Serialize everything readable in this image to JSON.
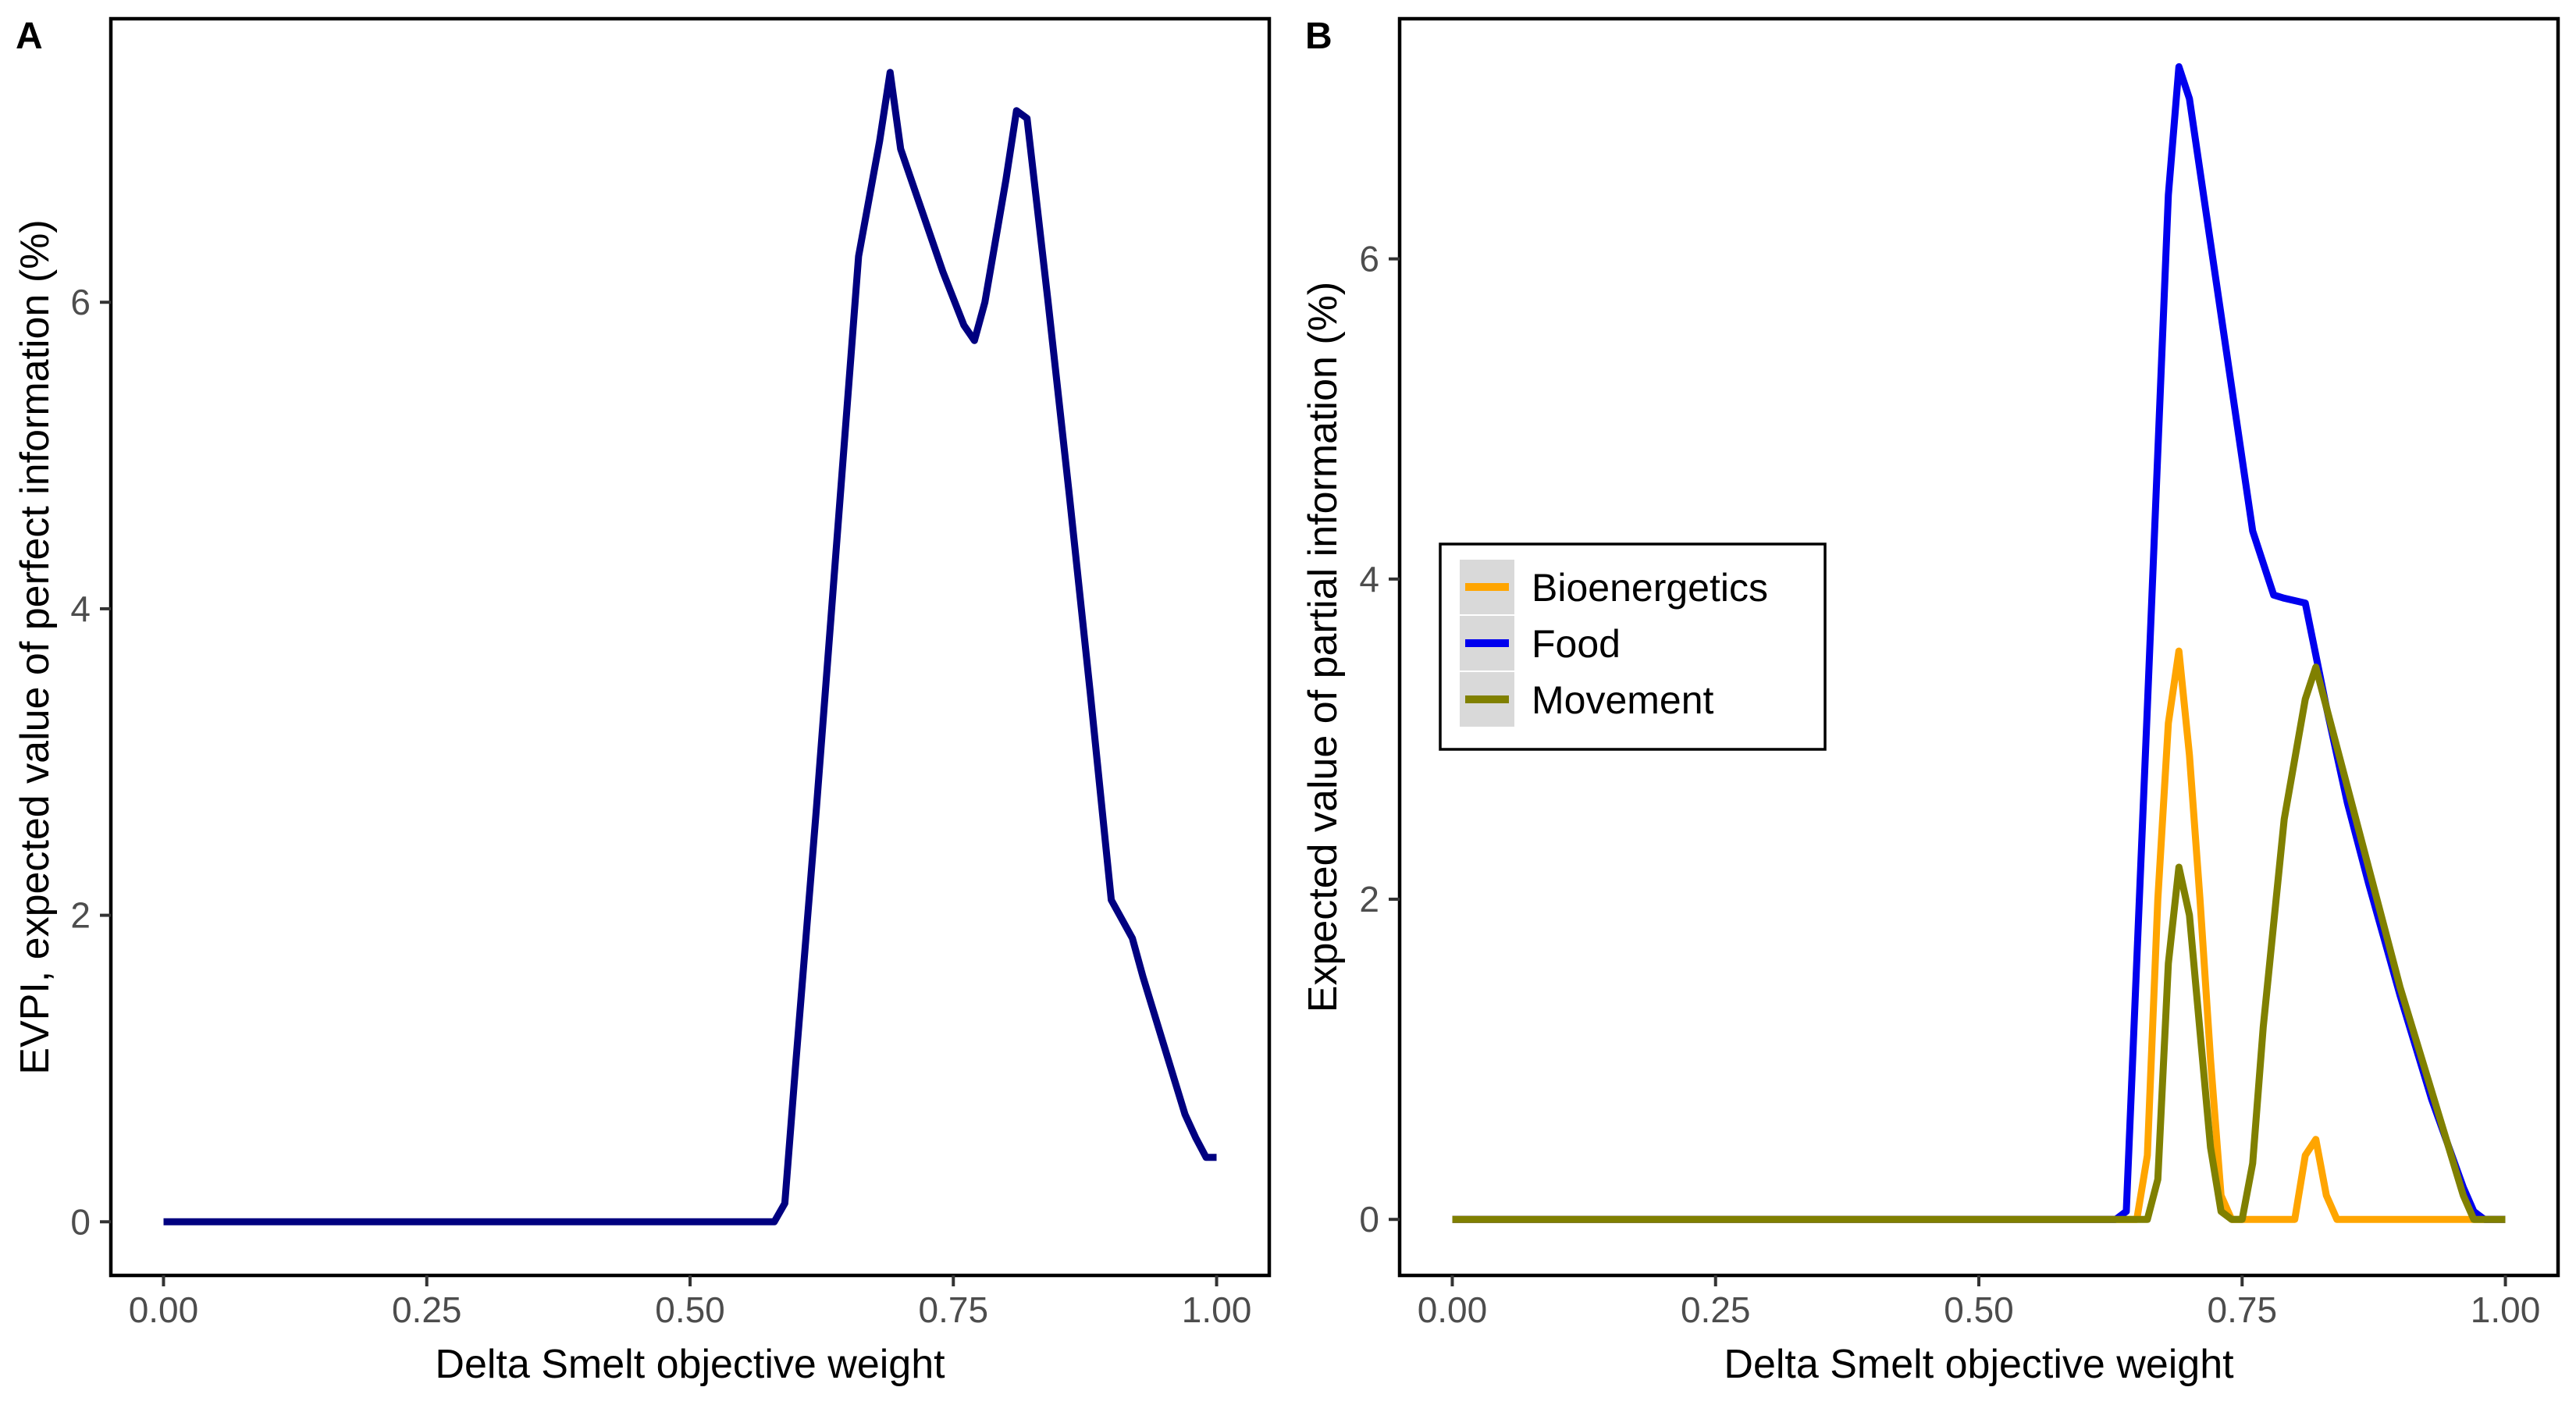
{
  "chart_data": [
    {
      "panel": "A",
      "type": "line",
      "title": "",
      "xlabel": "Delta Smelt objective weight",
      "ylabel": "EVPI, expected value of perfect information (%)",
      "xlim": [
        -0.05,
        1.05
      ],
      "ylim": [
        -0.35,
        7.85
      ],
      "xticks": [
        "0.00",
        "0.25",
        "0.50",
        "0.75",
        "1.00"
      ],
      "yticks": [
        "0",
        "2",
        "4",
        "6"
      ],
      "grid": false,
      "series": [
        {
          "color": "#000080",
          "x": [
            0.0,
            0.1,
            0.2,
            0.3,
            0.4,
            0.5,
            0.58,
            0.59,
            0.6,
            0.62,
            0.64,
            0.66,
            0.68,
            0.69,
            0.7,
            0.72,
            0.74,
            0.76,
            0.77,
            0.78,
            0.8,
            0.81,
            0.82,
            0.84,
            0.86,
            0.88,
            0.9,
            0.92,
            0.93,
            0.95,
            0.97,
            0.98,
            0.99,
            1.0
          ],
          "y": [
            0,
            0,
            0,
            0,
            0,
            0,
            0,
            0.12,
            1.0,
            2.7,
            4.5,
            6.3,
            7.05,
            7.5,
            7.0,
            6.6,
            6.2,
            5.85,
            5.75,
            6.0,
            6.8,
            7.25,
            7.2,
            6.0,
            4.75,
            3.45,
            2.1,
            1.85,
            1.6,
            1.15,
            0.7,
            0.55,
            0.42,
            0.42
          ]
        }
      ]
    },
    {
      "panel": "B",
      "type": "line",
      "title": "",
      "xlabel": "Delta Smelt objective weight",
      "ylabel": "Expected value of partial information (%)",
      "xlim": [
        -0.05,
        1.05
      ],
      "ylim": [
        -0.35,
        7.5
      ],
      "xticks": [
        "0.00",
        "0.25",
        "0.50",
        "0.75",
        "1.00"
      ],
      "yticks": [
        "0",
        "2",
        "4",
        "6"
      ],
      "grid": false,
      "legend_position": "left-middle",
      "series": [
        {
          "name": "Bioenergetics",
          "color": "#FFA500",
          "x": [
            0.0,
            0.2,
            0.4,
            0.6,
            0.65,
            0.66,
            0.67,
            0.68,
            0.69,
            0.7,
            0.71,
            0.72,
            0.73,
            0.74,
            0.75,
            0.76,
            0.78,
            0.8,
            0.81,
            0.82,
            0.83,
            0.84,
            0.86,
            0.9,
            0.95,
            1.0
          ],
          "y": [
            0,
            0,
            0,
            0,
            0,
            0.4,
            2.0,
            3.1,
            3.55,
            2.9,
            2.0,
            1.0,
            0.15,
            0,
            0,
            0,
            0,
            0,
            0.4,
            0.5,
            0.15,
            0,
            0,
            0,
            0,
            0
          ]
        },
        {
          "name": "Food",
          "color": "#0000EE",
          "x": [
            0.0,
            0.2,
            0.4,
            0.6,
            0.63,
            0.64,
            0.66,
            0.68,
            0.69,
            0.7,
            0.72,
            0.74,
            0.76,
            0.78,
            0.79,
            0.81,
            0.83,
            0.85,
            0.87,
            0.9,
            0.93,
            0.96,
            0.97,
            0.98,
            1.0
          ],
          "y": [
            0,
            0,
            0,
            0,
            0,
            0.05,
            3.2,
            6.4,
            7.2,
            7.0,
            6.1,
            5.2,
            4.3,
            3.9,
            3.88,
            3.85,
            3.2,
            2.6,
            2.1,
            1.4,
            0.75,
            0.2,
            0.05,
            0,
            0
          ]
        },
        {
          "name": "Movement",
          "color": "#808000",
          "x": [
            0.0,
            0.2,
            0.4,
            0.6,
            0.66,
            0.67,
            0.68,
            0.69,
            0.7,
            0.72,
            0.73,
            0.74,
            0.75,
            0.76,
            0.77,
            0.79,
            0.81,
            0.82,
            0.84,
            0.86,
            0.88,
            0.9,
            0.93,
            0.96,
            0.97,
            1.0
          ],
          "y": [
            0,
            0,
            0,
            0,
            0,
            0.25,
            1.6,
            2.2,
            1.9,
            0.45,
            0.05,
            0,
            0,
            0.35,
            1.2,
            2.5,
            3.25,
            3.45,
            2.95,
            2.45,
            1.95,
            1.45,
            0.8,
            0.15,
            0,
            0
          ]
        }
      ]
    }
  ]
}
